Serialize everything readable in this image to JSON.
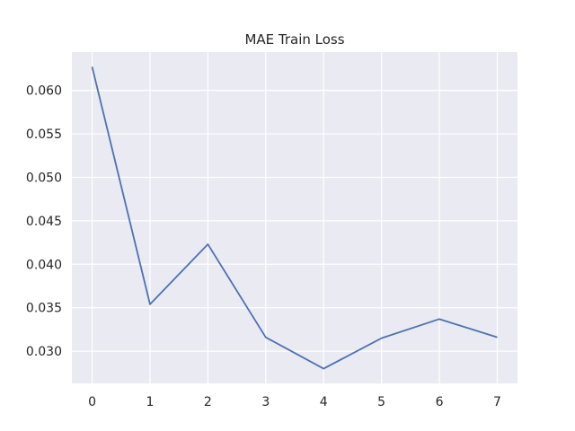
{
  "chart_data": {
    "type": "line",
    "title": "MAE Train Loss",
    "xlabel": "",
    "ylabel": "",
    "x": [
      0,
      1,
      2,
      3,
      4,
      5,
      6,
      7
    ],
    "series": [
      {
        "values": [
          0.0627,
          0.0354,
          0.0423,
          0.0316,
          0.028,
          0.0315,
          0.0337,
          0.0316
        ],
        "color": "#4c72b0"
      }
    ],
    "xticks": [
      "0",
      "1",
      "2",
      "3",
      "4",
      "5",
      "6",
      "7"
    ],
    "yticks": [
      "0.030",
      "0.035",
      "0.040",
      "0.045",
      "0.050",
      "0.055",
      "0.060"
    ],
    "xlim": [
      -0.35,
      7.35
    ],
    "ylim": [
      0.0263,
      0.0644
    ],
    "grid": true,
    "background": "#eaeaf2",
    "grid_color": "#ffffff"
  }
}
